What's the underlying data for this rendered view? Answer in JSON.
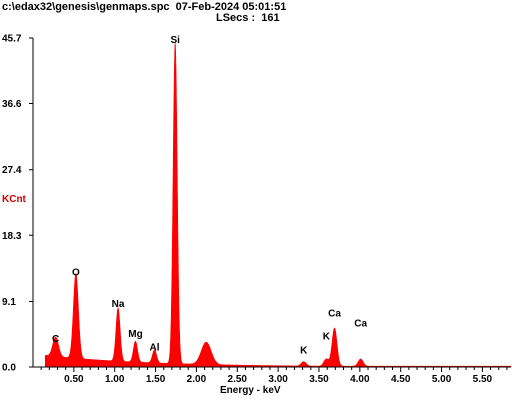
{
  "header": {
    "line1": "c:\\edax32\\genesis\\genmaps.spc  07-Feb-2024 05:01:51",
    "line2": "LSecs :  161"
  },
  "colors": {
    "spectrum": "#ff0000",
    "axis": "#000000",
    "ylabel": "#cc0000"
  },
  "chart_data": {
    "type": "area",
    "title": "",
    "xlabel": "Energy - keV",
    "ylabel": "KCnt",
    "xlim": [
      0.0,
      5.85
    ],
    "ylim": [
      0.0,
      45.7
    ],
    "x_ticks": [
      "0.50",
      "1.00",
      "1.50",
      "2.00",
      "2.50",
      "3.00",
      "3.50",
      "4.00",
      "4.50",
      "5.00",
      "5.50"
    ],
    "y_ticks": [
      "0.0",
      "9.1",
      "18.3",
      "27.4",
      "36.6",
      "45.7"
    ],
    "peaks": [
      {
        "element": "C",
        "energy": 0.277,
        "kcnt": 2.7
      },
      {
        "element": "O",
        "energy": 0.525,
        "kcnt": 11.8
      },
      {
        "element": "Na",
        "energy": 1.041,
        "kcnt": 7.4
      },
      {
        "element": "Mg",
        "energy": 1.254,
        "kcnt": 2.9
      },
      {
        "element": "Al",
        "energy": 1.487,
        "kcnt": 1.8
      },
      {
        "element": "Si",
        "energy": 1.74,
        "kcnt": 44.6
      },
      {
        "element": "",
        "energy": 2.12,
        "kcnt": 3.1
      },
      {
        "element": "K",
        "energy": 3.313,
        "kcnt": 0.6
      },
      {
        "element": "K",
        "energy": 3.59,
        "kcnt": 1.0
      },
      {
        "element": "Ca",
        "energy": 3.69,
        "kcnt": 5.3
      },
      {
        "element": "Ca",
        "energy": 4.01,
        "kcnt": 1.0
      }
    ],
    "peak_labels": [
      {
        "text": "C",
        "energy": 0.277,
        "kcnt": 3.5
      },
      {
        "text": "O",
        "energy": 0.525,
        "kcnt": 12.7
      },
      {
        "text": "Na",
        "energy": 1.041,
        "kcnt": 8.3
      },
      {
        "text": "Mg",
        "energy": 1.254,
        "kcnt": 4.2
      },
      {
        "text": "Al",
        "energy": 1.487,
        "kcnt": 2.3
      },
      {
        "text": "Si",
        "energy": 1.74,
        "kcnt": 45.0
      },
      {
        "text": "K",
        "energy": 3.313,
        "kcnt": 1.9
      },
      {
        "text": "K",
        "energy": 3.59,
        "kcnt": 3.8
      },
      {
        "text": "Ca",
        "energy": 3.69,
        "kcnt": 7.0
      },
      {
        "text": "Ca",
        "energy": 4.01,
        "kcnt": 5.6
      }
    ],
    "grid": false,
    "legend": "none"
  }
}
